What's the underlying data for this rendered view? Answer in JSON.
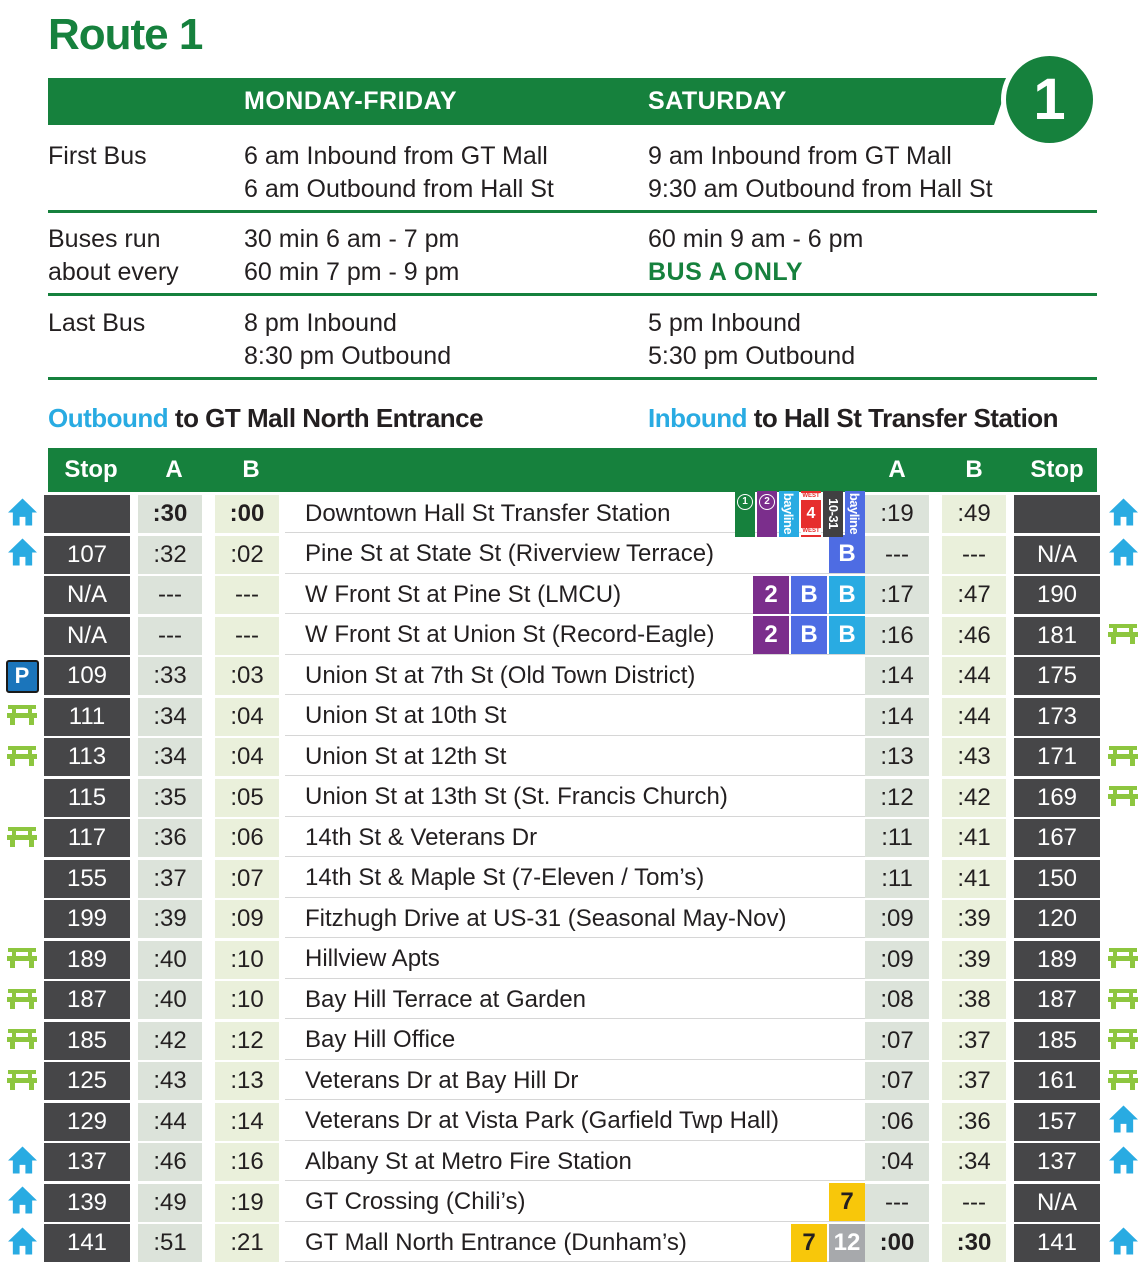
{
  "route": {
    "title": "Route 1",
    "number": "1"
  },
  "info": {
    "col_weekday": "MONDAY-FRIDAY",
    "col_saturday": "SATURDAY",
    "first_bus": {
      "label": "First Bus",
      "weekday_1": "6 am Inbound from GT Mall",
      "weekday_2": "6 am Outbound from Hall St",
      "saturday_1": "9 am Inbound from GT Mall",
      "saturday_2": "9:30 am Outbound from Hall St"
    },
    "frequency": {
      "label_1": "Buses run",
      "label_2": "about every",
      "weekday_1": "30 min 6 am - 7 pm",
      "weekday_2": "60 min 7 pm - 9 pm",
      "saturday_1": "60 min 9 am - 6 pm",
      "saturday_note": "BUS A ONLY"
    },
    "last_bus": {
      "label": "Last Bus",
      "weekday_1": "8 pm Inbound",
      "weekday_2": "8:30 pm Outbound",
      "saturday_1": "5 pm Inbound",
      "saturday_2": "5:30 pm Outbound"
    }
  },
  "directions": {
    "outbound_word": "Outbound",
    "outbound_rest": " to GT Mall North Entrance",
    "inbound_word": "Inbound",
    "inbound_rest": " to Hall St Transfer Station"
  },
  "schedule": {
    "left_headers": [
      "Stop",
      "A",
      "B"
    ],
    "right_headers": [
      "A",
      "B",
      "Stop"
    ],
    "rows": [
      {
        "icon_left": "house",
        "stop_out": "",
        "a_out": ":30",
        "b_out": ":00",
        "out_bold": true,
        "name": "Downtown Hall St Transfer Station",
        "badges": [
          {
            "kind": "tall-circle",
            "label": "1",
            "bg": "green"
          },
          {
            "kind": "tall-circle",
            "label": "2",
            "bg": "purple"
          },
          {
            "kind": "tall-text",
            "label": "bayline",
            "bg": "cyan"
          },
          {
            "kind": "west4",
            "label": "4",
            "cap": "WEST",
            "bg": "red"
          },
          {
            "kind": "tall-text",
            "label": "10-31",
            "bg": "dark"
          },
          {
            "kind": "tall-text",
            "label": "bayline",
            "bg": "royal"
          }
        ],
        "a_in": ":19",
        "b_in": ":49",
        "in_bold": false,
        "stop_in": "",
        "icon_right": "house"
      },
      {
        "icon_left": "house",
        "stop_out": "107",
        "a_out": ":32",
        "b_out": ":02",
        "out_bold": false,
        "name": "Pine St at State St (Riverview Terrace)",
        "badges": [
          {
            "kind": "square",
            "label": "B",
            "bg": "royal",
            "fg": "#FFFFFF"
          }
        ],
        "a_in": "---",
        "b_in": "---",
        "in_bold": false,
        "stop_in": "N/A",
        "icon_right": "house"
      },
      {
        "icon_left": null,
        "stop_out": "N/A",
        "a_out": "---",
        "b_out": "---",
        "out_bold": false,
        "name": "W Front St at Pine St (LMCU)",
        "badges": [
          {
            "kind": "square",
            "label": "2",
            "bg": "purple",
            "fg": "#FFFFFF"
          },
          {
            "kind": "square",
            "label": "B",
            "bg": "royal",
            "fg": "#FFFFFF"
          },
          {
            "kind": "square",
            "label": "B",
            "bg": "cyan",
            "fg": "#FFFFFF"
          }
        ],
        "a_in": ":17",
        "b_in": ":47",
        "in_bold": false,
        "stop_in": "190",
        "icon_right": null
      },
      {
        "icon_left": null,
        "stop_out": "N/A",
        "a_out": "---",
        "b_out": "---",
        "out_bold": false,
        "name": "W Front St at Union St (Record-Eagle)",
        "badges": [
          {
            "kind": "square",
            "label": "2",
            "bg": "purple",
            "fg": "#FFFFFF"
          },
          {
            "kind": "square",
            "label": "B",
            "bg": "royal",
            "fg": "#FFFFFF"
          },
          {
            "kind": "square",
            "label": "B",
            "bg": "cyan",
            "fg": "#FFFFFF"
          }
        ],
        "a_in": ":16",
        "b_in": ":46",
        "in_bold": false,
        "stop_in": "181",
        "icon_right": "bench"
      },
      {
        "icon_left": "parking",
        "stop_out": "109",
        "a_out": ":33",
        "b_out": ":03",
        "out_bold": false,
        "name": "Union St at 7th St (Old Town District)",
        "badges": [],
        "a_in": ":14",
        "b_in": ":44",
        "in_bold": false,
        "stop_in": "175",
        "icon_right": null
      },
      {
        "icon_left": "bench",
        "stop_out": "111",
        "a_out": ":34",
        "b_out": ":04",
        "out_bold": false,
        "name": "Union St at 10th St",
        "badges": [],
        "a_in": ":14",
        "b_in": ":44",
        "in_bold": false,
        "stop_in": "173",
        "icon_right": null
      },
      {
        "icon_left": "bench",
        "stop_out": "113",
        "a_out": ":34",
        "b_out": ":04",
        "out_bold": false,
        "name": "Union St at 12th St",
        "badges": [],
        "a_in": ":13",
        "b_in": ":43",
        "in_bold": false,
        "stop_in": "171",
        "icon_right": "bench"
      },
      {
        "icon_left": null,
        "stop_out": "115",
        "a_out": ":35",
        "b_out": ":05",
        "out_bold": false,
        "name": "Union St at 13th St (St. Francis Church)",
        "badges": [],
        "a_in": ":12",
        "b_in": ":42",
        "in_bold": false,
        "stop_in": "169",
        "icon_right": "bench"
      },
      {
        "icon_left": "bench",
        "stop_out": "117",
        "a_out": ":36",
        "b_out": ":06",
        "out_bold": false,
        "name": "14th St & Veterans Dr",
        "badges": [],
        "a_in": ":11",
        "b_in": ":41",
        "in_bold": false,
        "stop_in": "167",
        "icon_right": null
      },
      {
        "icon_left": null,
        "stop_out": "155",
        "a_out": ":37",
        "b_out": ":07",
        "out_bold": false,
        "name": "14th St & Maple St (7-Eleven / Tom’s)",
        "badges": [],
        "a_in": ":11",
        "b_in": ":41",
        "in_bold": false,
        "stop_in": "150",
        "icon_right": null
      },
      {
        "icon_left": null,
        "stop_out": "199",
        "a_out": ":39",
        "b_out": ":09",
        "out_bold": false,
        "name": "Fitzhugh Drive at US-31 (Seasonal May-Nov)",
        "badges": [],
        "a_in": ":09",
        "b_in": ":39",
        "in_bold": false,
        "stop_in": "120",
        "icon_right": null
      },
      {
        "icon_left": "bench",
        "stop_out": "189",
        "a_out": ":40",
        "b_out": ":10",
        "out_bold": false,
        "name": "Hillview Apts",
        "badges": [],
        "a_in": ":09",
        "b_in": ":39",
        "in_bold": false,
        "stop_in": "189",
        "icon_right": "bench"
      },
      {
        "icon_left": "bench",
        "stop_out": "187",
        "a_out": ":40",
        "b_out": ":10",
        "out_bold": false,
        "name": "Bay Hill Terrace at Garden",
        "badges": [],
        "a_in": ":08",
        "b_in": ":38",
        "in_bold": false,
        "stop_in": "187",
        "icon_right": "bench"
      },
      {
        "icon_left": "bench",
        "stop_out": "185",
        "a_out": ":42",
        "b_out": ":12",
        "out_bold": false,
        "name": "Bay Hill Office",
        "badges": [],
        "a_in": ":07",
        "b_in": ":37",
        "in_bold": false,
        "stop_in": "185",
        "icon_right": "bench"
      },
      {
        "icon_left": "bench",
        "stop_out": "125",
        "a_out": ":43",
        "b_out": ":13",
        "out_bold": false,
        "name": "Veterans Dr at Bay Hill Dr",
        "badges": [],
        "a_in": ":07",
        "b_in": ":37",
        "in_bold": false,
        "stop_in": "161",
        "icon_right": "bench"
      },
      {
        "icon_left": null,
        "stop_out": "129",
        "a_out": ":44",
        "b_out": ":14",
        "out_bold": false,
        "name": "Veterans Dr at Vista Park (Garfield Twp Hall)",
        "badges": [],
        "a_in": ":06",
        "b_in": ":36",
        "in_bold": false,
        "stop_in": "157",
        "icon_right": "house"
      },
      {
        "icon_left": "house",
        "stop_out": "137",
        "a_out": ":46",
        "b_out": ":16",
        "out_bold": false,
        "name": "Albany St at Metro Fire Station",
        "badges": [],
        "a_in": ":04",
        "b_in": ":34",
        "in_bold": false,
        "stop_in": "137",
        "icon_right": "house"
      },
      {
        "icon_left": "house",
        "stop_out": "139",
        "a_out": ":49",
        "b_out": ":19",
        "out_bold": false,
        "name": "GT Crossing (Chili’s)",
        "badges": [
          {
            "kind": "square",
            "label": "7",
            "bg": "yellow",
            "fg": "#231F20"
          }
        ],
        "a_in": "---",
        "b_in": "---",
        "in_bold": false,
        "stop_in": "N/A",
        "icon_right": null
      },
      {
        "icon_left": "house",
        "stop_out": "141",
        "a_out": ":51",
        "b_out": ":21",
        "out_bold": false,
        "name": "GT Mall North Entrance (Dunham’s)",
        "badges": [
          {
            "kind": "square",
            "label": "7",
            "bg": "yellow",
            "fg": "#231F20"
          },
          {
            "kind": "square",
            "label": "12",
            "bg": "gray",
            "fg": "#FFFFFF"
          }
        ],
        "a_in": ":00",
        "b_in": ":30",
        "in_bold": true,
        "stop_in": "141",
        "icon_right": "house"
      }
    ]
  },
  "colors": {
    "green": "#16813D",
    "cyan": "#29ABE2",
    "purple": "#7B2E8C",
    "royal": "#4E6CE3",
    "dark": "#414042",
    "red": "#E62E2D",
    "yellow": "#F8C70A",
    "gray": "#A7A9AC",
    "icon_blue": "#29ABE2",
    "icon_green": "#8DC63F",
    "parking_blue": "#1B75BB",
    "cell_dark": "#464648",
    "tint_a": "#DCE3DA",
    "tint_b": "#EAF0DB",
    "text": "#231F20"
  }
}
